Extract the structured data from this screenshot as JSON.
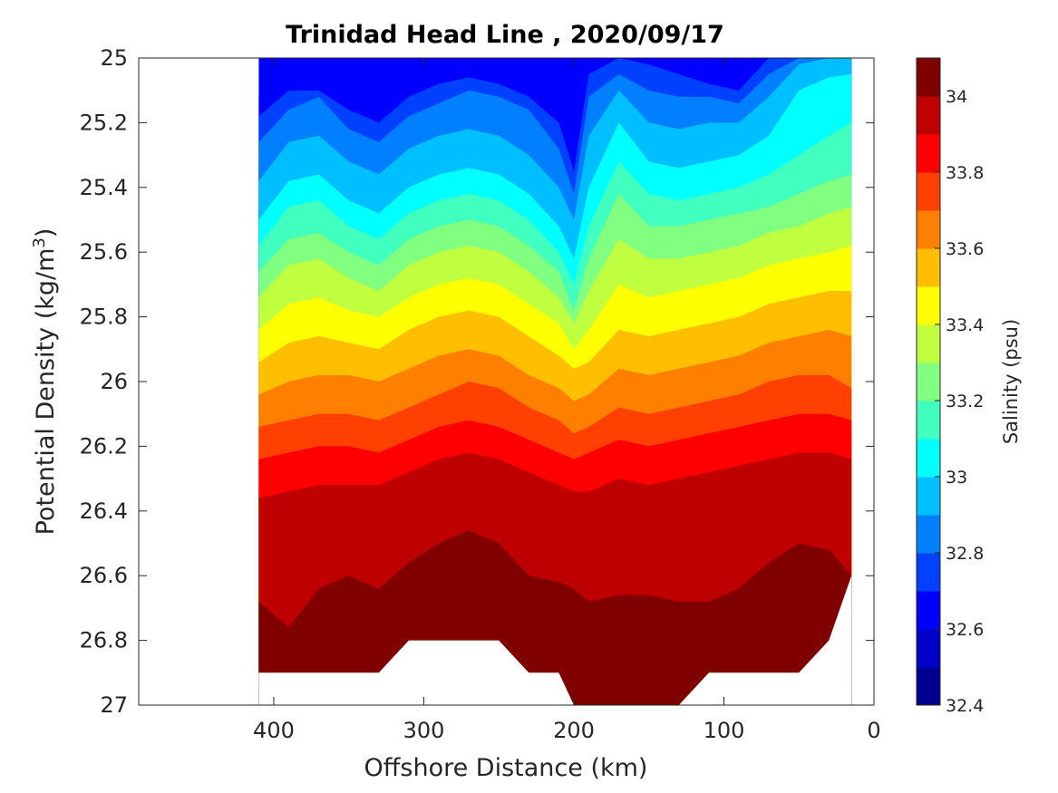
{
  "chart_data": {
    "type": "filled-contour",
    "title": "Trinidad Head Line , 2020/09/17",
    "xlabel": "Offshore Distance (km)",
    "ylabel": "Potential Density (kg/m",
    "ylabel_sup": "3",
    "ylabel_close": ")",
    "colorbar_label": "Salinity (psu)",
    "xlim": [
      490,
      0
    ],
    "ylim": [
      25,
      27
    ],
    "x_reversed": true,
    "y_reversed": true,
    "xticks": [
      "400",
      "300",
      "200",
      "100",
      "0"
    ],
    "xtick_values": [
      400,
      300,
      200,
      100,
      0
    ],
    "yticks": [
      "25",
      "25.2",
      "25.4",
      "25.6",
      "25.8",
      "26",
      "26.2",
      "26.4",
      "26.6",
      "26.8",
      "27"
    ],
    "ytick_values": [
      25,
      25.2,
      25.4,
      25.6,
      25.8,
      26,
      26.2,
      26.4,
      26.6,
      26.8,
      27
    ],
    "colorbar": {
      "range": [
        32.4,
        34.1
      ],
      "ticks": [
        "32.4",
        "32.6",
        "32.8",
        "33",
        "33.2",
        "33.4",
        "33.6",
        "33.8",
        "34"
      ],
      "tick_values": [
        32.4,
        32.6,
        32.8,
        33,
        33.2,
        33.4,
        33.6,
        33.8,
        34
      ],
      "levels": [
        32.4,
        32.5,
        32.6,
        32.7,
        32.8,
        32.9,
        33.0,
        33.1,
        33.2,
        33.3,
        33.4,
        33.5,
        33.6,
        33.7,
        33.8,
        33.9,
        34.0,
        34.1
      ],
      "colors": [
        "#00008f",
        "#0000c8",
        "#0000ff",
        "#0040ff",
        "#0080ff",
        "#00bfff",
        "#00ffff",
        "#40ffbf",
        "#80ff80",
        "#bfff40",
        "#ffff00",
        "#ffbf00",
        "#ff8000",
        "#ff4000",
        "#ff0000",
        "#bf0000",
        "#800000"
      ]
    },
    "section": {
      "x": [
        410,
        390,
        370,
        350,
        330,
        310,
        290,
        270,
        250,
        230,
        210,
        200,
        190,
        170,
        150,
        130,
        110,
        90,
        70,
        50,
        30,
        15
      ],
      "bottom_depth": [
        26.9,
        26.9,
        26.9,
        26.9,
        26.9,
        26.8,
        26.8,
        26.8,
        26.8,
        26.9,
        26.9,
        27.0,
        27.0,
        27.0,
        27.0,
        27.0,
        26.9,
        26.9,
        26.9,
        26.9,
        26.8,
        26.6
      ],
      "isohalines": [
        {
          "level": 32.6,
          "depth": [
            25.12,
            25.05,
            25.02,
            25.08,
            25.12,
            25.06,
            25.03,
            25.0,
            25.02,
            25.04,
            25.08,
            25.1,
            25.0,
            25.0,
            25.0,
            25.0,
            25.0,
            25.02,
            25.0,
            25.0,
            25.0,
            25.0
          ]
        },
        {
          "level": 32.7,
          "depth": [
            25.18,
            25.1,
            25.1,
            25.16,
            25.2,
            25.12,
            25.08,
            25.06,
            25.08,
            25.12,
            25.2,
            25.35,
            25.05,
            25.0,
            25.02,
            25.05,
            25.08,
            25.1,
            25.0,
            25.0,
            25.0,
            25.0
          ]
        },
        {
          "level": 32.8,
          "depth": [
            25.26,
            25.16,
            25.12,
            25.22,
            25.26,
            25.18,
            25.14,
            25.1,
            25.12,
            25.16,
            25.28,
            25.42,
            25.12,
            25.05,
            25.1,
            25.12,
            25.12,
            25.14,
            25.05,
            25.0,
            25.0,
            25.0
          ]
        },
        {
          "level": 32.9,
          "depth": [
            25.38,
            25.26,
            25.24,
            25.32,
            25.36,
            25.28,
            25.24,
            25.22,
            25.24,
            25.3,
            25.4,
            25.5,
            25.24,
            25.1,
            25.2,
            25.22,
            25.2,
            25.2,
            25.12,
            25.02,
            25.0,
            25.0
          ]
        },
        {
          "level": 33.0,
          "depth": [
            25.5,
            25.38,
            25.36,
            25.44,
            25.48,
            25.4,
            25.36,
            25.34,
            25.36,
            25.42,
            25.52,
            25.62,
            25.4,
            25.2,
            25.32,
            25.34,
            25.32,
            25.3,
            25.24,
            25.1,
            25.06,
            25.05
          ]
        },
        {
          "level": 33.1,
          "depth": [
            25.58,
            25.46,
            25.44,
            25.52,
            25.56,
            25.48,
            25.44,
            25.42,
            25.44,
            25.5,
            25.6,
            25.7,
            25.52,
            25.32,
            25.42,
            25.44,
            25.42,
            25.4,
            25.36,
            25.3,
            25.24,
            25.2
          ]
        },
        {
          "level": 33.2,
          "depth": [
            25.66,
            25.56,
            25.54,
            25.6,
            25.64,
            25.56,
            25.52,
            25.5,
            25.52,
            25.58,
            25.66,
            25.78,
            25.62,
            25.42,
            25.52,
            25.52,
            25.5,
            25.48,
            25.46,
            25.42,
            25.38,
            25.36
          ]
        },
        {
          "level": 33.3,
          "depth": [
            25.74,
            25.64,
            25.62,
            25.68,
            25.72,
            25.64,
            25.6,
            25.58,
            25.6,
            25.66,
            25.74,
            25.82,
            25.72,
            25.56,
            25.62,
            25.62,
            25.6,
            25.58,
            25.54,
            25.52,
            25.48,
            25.46
          ]
        },
        {
          "level": 33.4,
          "depth": [
            25.84,
            25.76,
            25.74,
            25.78,
            25.8,
            25.74,
            25.7,
            25.68,
            25.7,
            25.76,
            25.82,
            25.9,
            25.84,
            25.7,
            25.74,
            25.72,
            25.7,
            25.68,
            25.64,
            25.62,
            25.6,
            25.58
          ]
        },
        {
          "level": 33.5,
          "depth": [
            25.94,
            25.88,
            25.86,
            25.88,
            25.9,
            25.84,
            25.8,
            25.78,
            25.8,
            25.86,
            25.92,
            25.96,
            25.94,
            25.84,
            25.86,
            25.84,
            25.82,
            25.8,
            25.76,
            25.74,
            25.72,
            25.72
          ]
        },
        {
          "level": 33.6,
          "depth": [
            26.04,
            26.0,
            25.98,
            25.98,
            26.0,
            25.96,
            25.92,
            25.9,
            25.92,
            25.98,
            26.02,
            26.06,
            26.04,
            25.96,
            25.98,
            25.96,
            25.94,
            25.92,
            25.88,
            25.86,
            25.84,
            25.86
          ]
        },
        {
          "level": 33.7,
          "depth": [
            26.14,
            26.12,
            26.1,
            26.1,
            26.12,
            26.08,
            26.04,
            26.0,
            26.02,
            26.08,
            26.12,
            26.16,
            26.14,
            26.08,
            26.1,
            26.08,
            26.06,
            26.04,
            26.0,
            25.98,
            25.98,
            26.02
          ]
        },
        {
          "level": 33.8,
          "depth": [
            26.24,
            26.22,
            26.2,
            26.2,
            26.22,
            26.18,
            26.14,
            26.12,
            26.14,
            26.18,
            26.22,
            26.24,
            26.22,
            26.18,
            26.2,
            26.18,
            26.16,
            26.14,
            26.12,
            26.1,
            26.1,
            26.12
          ]
        },
        {
          "level": 33.9,
          "depth": [
            26.36,
            26.34,
            26.32,
            26.32,
            26.32,
            26.28,
            26.24,
            26.22,
            26.24,
            26.28,
            26.32,
            26.34,
            26.34,
            26.3,
            26.32,
            26.3,
            26.28,
            26.26,
            26.24,
            26.22,
            26.22,
            26.24
          ]
        },
        {
          "level": 34.0,
          "depth": [
            26.68,
            26.76,
            26.64,
            26.6,
            26.64,
            26.56,
            26.5,
            26.46,
            26.5,
            26.6,
            26.62,
            26.64,
            26.68,
            26.66,
            26.66,
            26.68,
            26.68,
            26.64,
            26.56,
            26.5,
            26.52,
            26.6
          ]
        },
        {
          "level": 34.1,
          "depth": [
            26.95,
            26.95,
            26.95,
            26.95,
            26.95,
            26.95,
            26.95,
            26.95,
            26.95,
            26.95,
            26.95,
            26.96,
            26.96,
            26.92,
            26.9,
            26.9,
            26.9,
            26.92,
            26.85,
            26.9,
            26.95,
            26.95
          ]
        }
      ]
    }
  }
}
